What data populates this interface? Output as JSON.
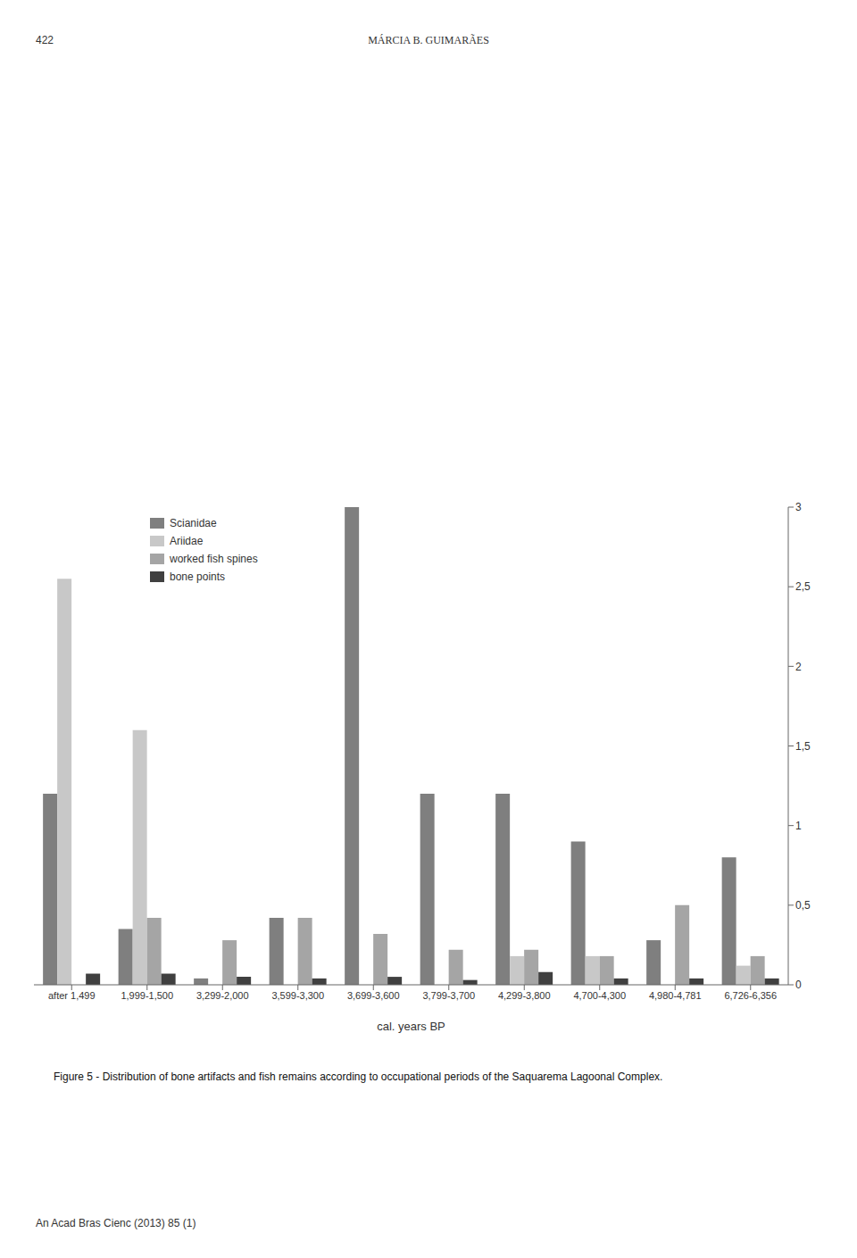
{
  "chart_data": {
    "type": "bar",
    "title": "Figure 5 - Distribution of bone artifacts and fish remains according to occupational periods of the Saquarema Lagoonal Complex.",
    "annotations": [
      "422",
      "MÁRCIA B. GUIMARÃES",
      "An Acad Bras Cienc (2013) 85 (1)"
    ],
    "xlabel": "cal. years BP",
    "categories": [
      "after 1,499",
      "1,999-1,500",
      "3,299-2,000",
      "3,599-3,300",
      "3,699-3,600",
      "3,799-3,700",
      "4,299-3,800",
      "4,700-4,300",
      "4,980-4,781",
      "6,726-6,356"
    ],
    "series": [
      {
        "name": "Scianidae",
        "color": "#7f7f7f",
        "values": [
          1.2,
          0.35,
          0.04,
          0.42,
          3.0,
          1.2,
          1.2,
          0.9,
          0.28,
          0.8
        ]
      },
      {
        "name": "Ariidae",
        "color": "#c8c8c8",
        "values": [
          2.55,
          1.6,
          0.0,
          0.0,
          0.0,
          0.0,
          0.18,
          0.18,
          0.0,
          0.12
        ]
      },
      {
        "name": "worked fish spines",
        "color": "#a5a5a5",
        "values": [
          0.0,
          0.42,
          0.28,
          0.42,
          0.32,
          0.22,
          0.22,
          0.18,
          0.5,
          0.18
        ]
      },
      {
        "name": "bone points",
        "color": "#404040",
        "values": [
          0.07,
          0.07,
          0.05,
          0.04,
          0.05,
          0.03,
          0.08,
          0.04,
          0.04,
          0.04
        ]
      }
    ],
    "ylim": [
      0,
      3
    ],
    "yticks": [
      0,
      {
        "value": 0.5,
        "label": "0,5"
      },
      1,
      {
        "value": 1.5,
        "label": "1,5"
      },
      2,
      {
        "value": 2.5,
        "label": "2,5"
      },
      3
    ],
    "grid": false,
    "legend": "upper left"
  }
}
